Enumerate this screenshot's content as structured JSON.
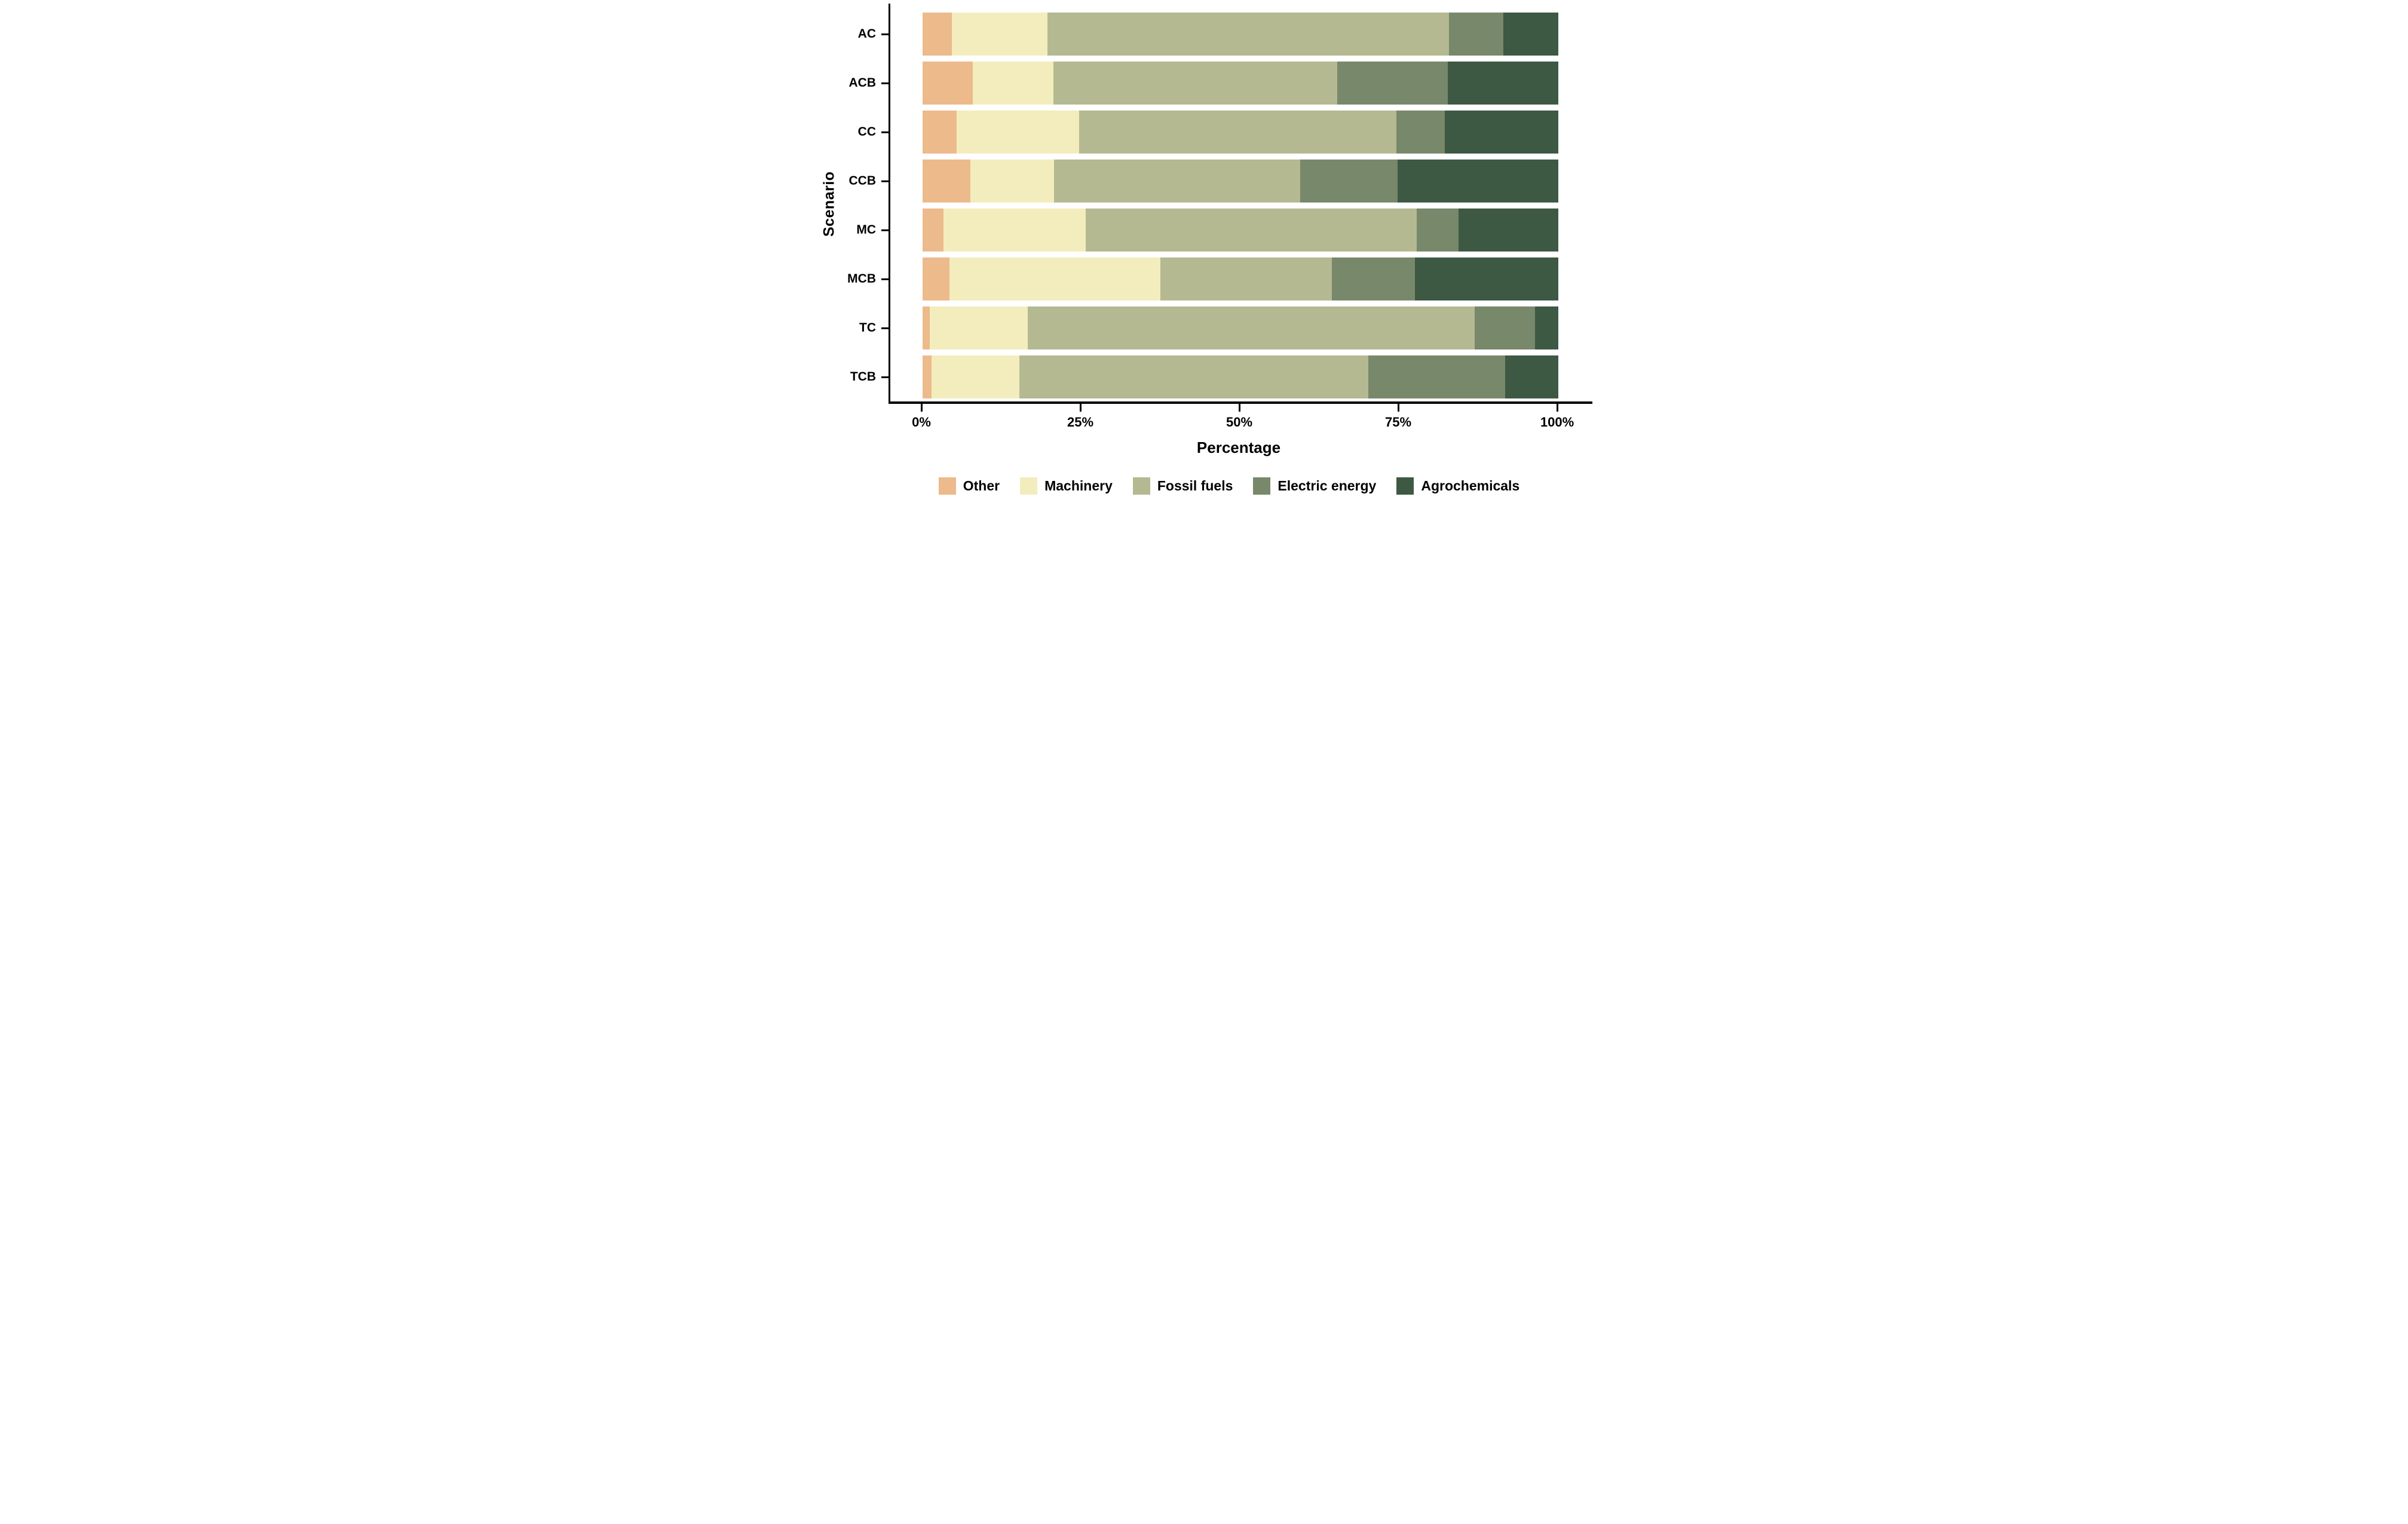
{
  "figure": {
    "background": "#ffffff",
    "axis_color": "#000000",
    "text_color": "#000000"
  },
  "chart_data": {
    "type": "bar",
    "variant": "horizontal-stacked-100pct",
    "title": "",
    "xlabel": "Percentage",
    "ylabel": "Scenario",
    "xlim": [
      0,
      100
    ],
    "x_ticks": [
      "0%",
      "25%",
      "50%",
      "75%",
      "100%"
    ],
    "x_tick_values": [
      0,
      25,
      50,
      75,
      100
    ],
    "grid": "off",
    "legend_position": "bottom",
    "categories": [
      "AC",
      "ACB",
      "CC",
      "CCB",
      "MC",
      "MCB",
      "TC",
      "TCB"
    ],
    "series": [
      {
        "name": "Other",
        "color": "#ECBA8B",
        "values": [
          4.6,
          7.9,
          5.4,
          7.5,
          3.3,
          4.2,
          1.1,
          1.4
        ]
      },
      {
        "name": "Machinery",
        "color": "#F3EDBD",
        "values": [
          15.0,
          12.7,
          19.2,
          13.2,
          22.4,
          33.2,
          15.4,
          13.8
        ]
      },
      {
        "name": "Fossil fuels",
        "color": "#B4B991",
        "values": [
          63.2,
          44.6,
          49.9,
          38.7,
          52.0,
          27.0,
          70.3,
          54.9
        ]
      },
      {
        "name": "Electric energy",
        "color": "#78886A",
        "values": [
          8.6,
          17.4,
          7.6,
          15.3,
          6.6,
          13.0,
          9.5,
          21.5
        ]
      },
      {
        "name": "Agrochemicals",
        "color": "#3D5943",
        "values": [
          8.6,
          17.4,
          17.9,
          25.3,
          15.7,
          22.6,
          3.7,
          8.4
        ]
      }
    ]
  }
}
